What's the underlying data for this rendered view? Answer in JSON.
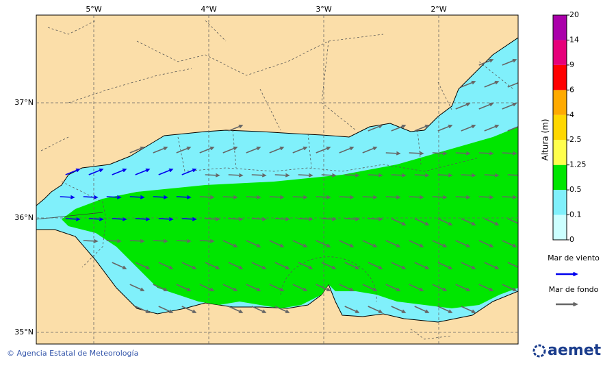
{
  "map": {
    "lon_labels": [
      "5°W",
      "4°W",
      "3°W",
      "2°W"
    ],
    "lat_labels": [
      "37°N",
      "36°N",
      "35°N"
    ],
    "colorbar": {
      "title": "Altura (m)",
      "ticks": [
        0,
        0.1,
        0.5,
        1.25,
        2.5,
        4,
        6,
        9,
        14,
        20
      ],
      "colors": [
        "#ccffff",
        "#80f0fb",
        "#00e600",
        "#ffff4d",
        "#ffd700",
        "#ffaa00",
        "#ff0000",
        "#e6007a",
        "#aa00aa"
      ]
    },
    "legend": [
      {
        "label": "Mar de viento",
        "color": "#0000ee"
      },
      {
        "label": "Mar de fondo",
        "color": "#666666"
      }
    ],
    "footer": "© Agencia Estatal de Meteorología",
    "logo": "aemet"
  }
}
